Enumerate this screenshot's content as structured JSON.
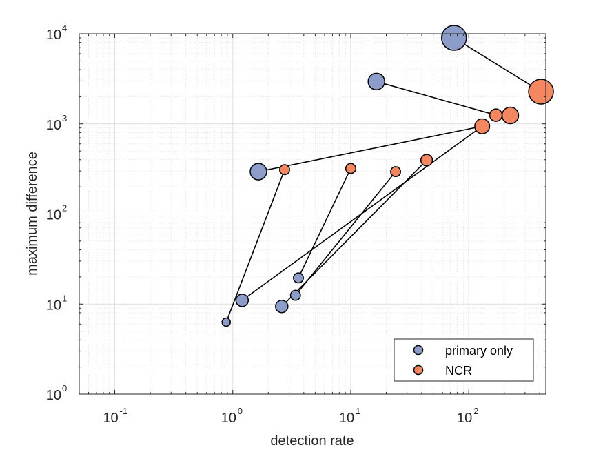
{
  "chart_data": {
    "type": "scatter",
    "xlabel": "detection rate",
    "ylabel": "maximum difference",
    "xscale": "log",
    "yscale": "log",
    "xlim": [
      0.05,
      450
    ],
    "ylim": [
      1,
      10000
    ],
    "x_ticks": [
      {
        "value": 0.1,
        "base": "10",
        "exp": "-1"
      },
      {
        "value": 1,
        "base": "10",
        "exp": "0"
      },
      {
        "value": 10,
        "base": "10",
        "exp": "1"
      },
      {
        "value": 100,
        "base": "10",
        "exp": "2"
      }
    ],
    "y_ticks": [
      {
        "value": 1,
        "base": "10",
        "exp": "0"
      },
      {
        "value": 10,
        "base": "10",
        "exp": "1"
      },
      {
        "value": 100,
        "base": "10",
        "exp": "2"
      },
      {
        "value": 1000,
        "base": "10",
        "exp": "3"
      },
      {
        "value": 10000,
        "base": "10",
        "exp": "4"
      }
    ],
    "grid": true,
    "minor_grid": true,
    "legend_position": "bottom-right",
    "series": [
      {
        "name": "primary only",
        "color": "#8C9DC9",
        "points": [
          {
            "x": 75,
            "y": 9000,
            "size": 3
          },
          {
            "x": 16.5,
            "y": 2950,
            "size": 2
          },
          {
            "x": 1.65,
            "y": 295,
            "size": 2
          },
          {
            "x": 0.88,
            "y": 6.3,
            "size": 1
          },
          {
            "x": 1.2,
            "y": 11,
            "size": 1.5
          },
          {
            "x": 2.6,
            "y": 9.4,
            "size": 1.5
          },
          {
            "x": 3.4,
            "y": 12.5,
            "size": 1.2
          },
          {
            "x": 3.6,
            "y": 19.5,
            "size": 1.2
          }
        ]
      },
      {
        "name": "NCR",
        "color": "#F4875F",
        "points": [
          {
            "x": 410,
            "y": 2280,
            "size": 3
          },
          {
            "x": 225,
            "y": 1240,
            "size": 2
          },
          {
            "x": 170,
            "y": 1250,
            "size": 1.5
          },
          {
            "x": 130,
            "y": 940,
            "size": 1.8
          },
          {
            "x": 2.75,
            "y": 310,
            "size": 1.2
          },
          {
            "x": 10,
            "y": 320,
            "size": 1.2
          },
          {
            "x": 24,
            "y": 295,
            "size": 1.2
          },
          {
            "x": 44,
            "y": 395,
            "size": 1.4
          }
        ]
      }
    ],
    "connections": [
      [
        [
          75,
          9000
        ],
        [
          410,
          2280
        ]
      ],
      [
        [
          16.5,
          2950
        ],
        [
          170,
          1250
        ]
      ],
      [
        [
          1.65,
          295
        ],
        [
          130,
          940
        ]
      ],
      [
        [
          0.88,
          6.3
        ],
        [
          2.75,
          310
        ]
      ],
      [
        [
          1.2,
          11
        ],
        [
          130,
          940
        ]
      ],
      [
        [
          3.6,
          19.5
        ],
        [
          10,
          320
        ]
      ],
      [
        [
          3.4,
          12.5
        ],
        [
          24,
          295
        ]
      ],
      [
        [
          2.6,
          9.4
        ],
        [
          44,
          395
        ]
      ]
    ]
  },
  "colors": {
    "primary_only": "#8C9DC9",
    "ncr": "#F4875F",
    "line": "#000000",
    "grid": "#dedede",
    "axis": "#262626"
  }
}
